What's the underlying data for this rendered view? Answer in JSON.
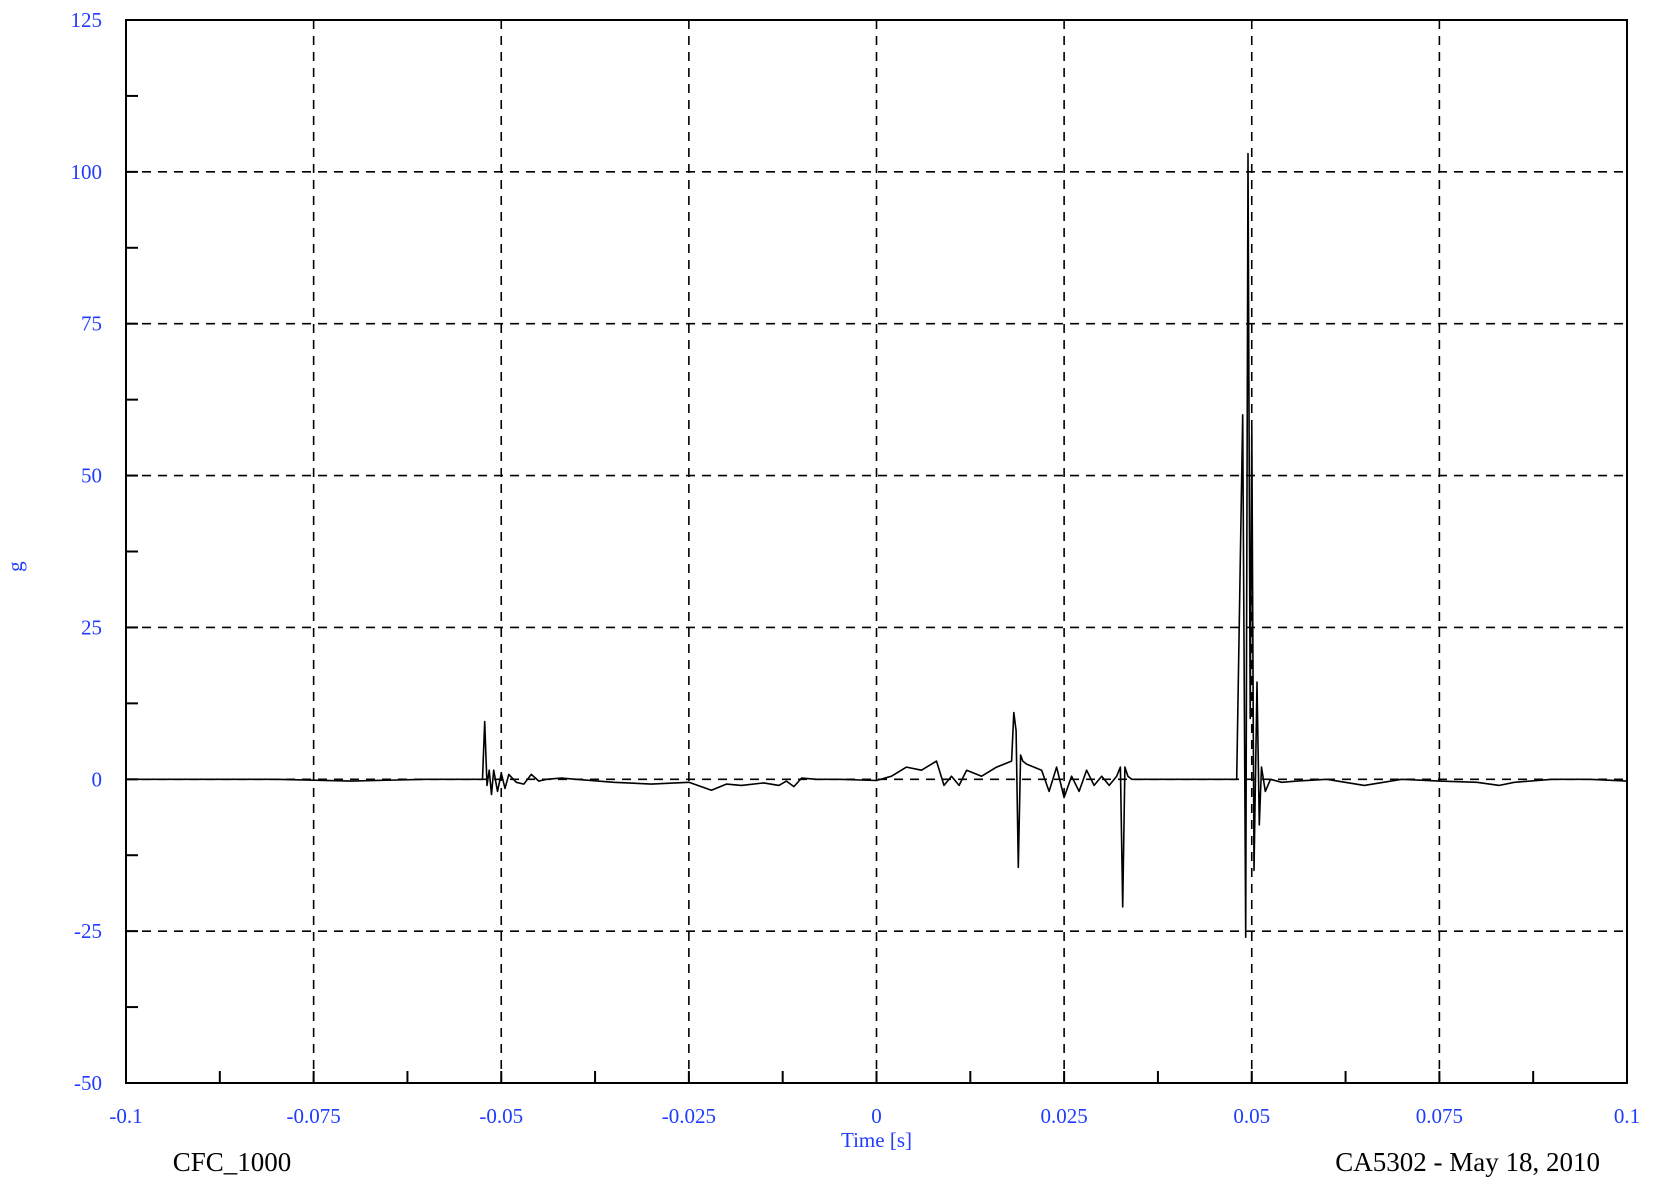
{
  "chart_data": {
    "type": "line",
    "xlabel": "Time [s]",
    "ylabel": "g",
    "xlim": [
      -0.1,
      0.1
    ],
    "ylim": [
      -50,
      125
    ],
    "x_ticks": [
      -0.1,
      -0.075,
      -0.05,
      -0.025,
      0,
      0.025,
      0.05,
      0.075,
      0.1
    ],
    "x_tick_labels": [
      "-0.1",
      "-0.075",
      "-0.05",
      "-0.025",
      "0",
      "0.025",
      "0.05",
      "0.075",
      "0.1"
    ],
    "y_ticks": [
      -50,
      -25,
      0,
      25,
      50,
      75,
      100,
      125
    ],
    "y_tick_labels": [
      "-50",
      "-25",
      "0",
      "25",
      "50",
      "75",
      "100",
      "125"
    ],
    "grid": true,
    "grid_style": "dashed",
    "legend": "none",
    "colors": {
      "trace": "#000000",
      "axis_text": "#1f3cff",
      "grid": "#000000"
    },
    "footer_left": "CFC_1000",
    "footer_right": "CA5302 - May 18, 2010",
    "series": [
      {
        "x": [
          -0.1,
          -0.09,
          -0.08,
          -0.07,
          -0.06,
          -0.055,
          -0.0525,
          -0.0522,
          -0.0519,
          -0.0516,
          -0.0513,
          -0.051,
          -0.0505,
          -0.05,
          -0.0495,
          -0.049,
          -0.048,
          -0.047,
          -0.046,
          -0.045,
          -0.044,
          -0.042,
          -0.04,
          -0.035,
          -0.03,
          -0.025,
          -0.022,
          -0.02,
          -0.018,
          -0.015,
          -0.013,
          -0.012,
          -0.011,
          -0.01,
          -0.008,
          -0.005,
          0,
          0.002,
          0.004,
          0.006,
          0.008,
          0.009,
          0.01,
          0.011,
          0.012,
          0.014,
          0.016,
          0.018,
          0.0183,
          0.0186,
          0.0189,
          0.0192,
          0.0195,
          0.02,
          0.022,
          0.023,
          0.024,
          0.025,
          0.026,
          0.027,
          0.028,
          0.029,
          0.03,
          0.031,
          0.032,
          0.0325,
          0.0328,
          0.0331,
          0.0335,
          0.034,
          0.036,
          0.04,
          0.045,
          0.048,
          0.0488,
          0.0492,
          0.0495,
          0.0498,
          0.05,
          0.0503,
          0.0507,
          0.051,
          0.0513,
          0.0518,
          0.0525,
          0.054,
          0.056,
          0.06,
          0.065,
          0.07,
          0.075,
          0.08,
          0.083,
          0.085,
          0.09,
          0.095,
          0.1
        ],
        "y": [
          0,
          0,
          0,
          -0.3,
          0,
          0,
          0,
          9.5,
          -1,
          1.5,
          -2.5,
          1.5,
          -2,
          1,
          -1.5,
          0.8,
          -0.5,
          -0.8,
          0.8,
          -0.3,
          0,
          0.2,
          0,
          -0.5,
          -0.8,
          -0.5,
          -1.8,
          -0.8,
          -1,
          -0.6,
          -1,
          -0.3,
          -1.2,
          0.2,
          0,
          0,
          -0.2,
          0.5,
          2,
          1.5,
          3,
          -1,
          0.5,
          -1,
          1.5,
          0.5,
          2,
          3,
          11,
          8,
          -14.5,
          4,
          3,
          2.5,
          1.5,
          -2,
          2,
          -3,
          0.5,
          -2,
          1.5,
          -1,
          0.5,
          -1,
          0.5,
          2,
          -21,
          2,
          0.5,
          0,
          0,
          0,
          0,
          0,
          60,
          -26,
          103,
          10,
          58,
          -15,
          16,
          -7.5,
          2,
          -2,
          0,
          -0.5,
          -0.3,
          0,
          -1,
          0,
          -0.3,
          -0.5,
          -1,
          -0.5,
          0,
          0,
          -0.3
        ]
      }
    ]
  }
}
